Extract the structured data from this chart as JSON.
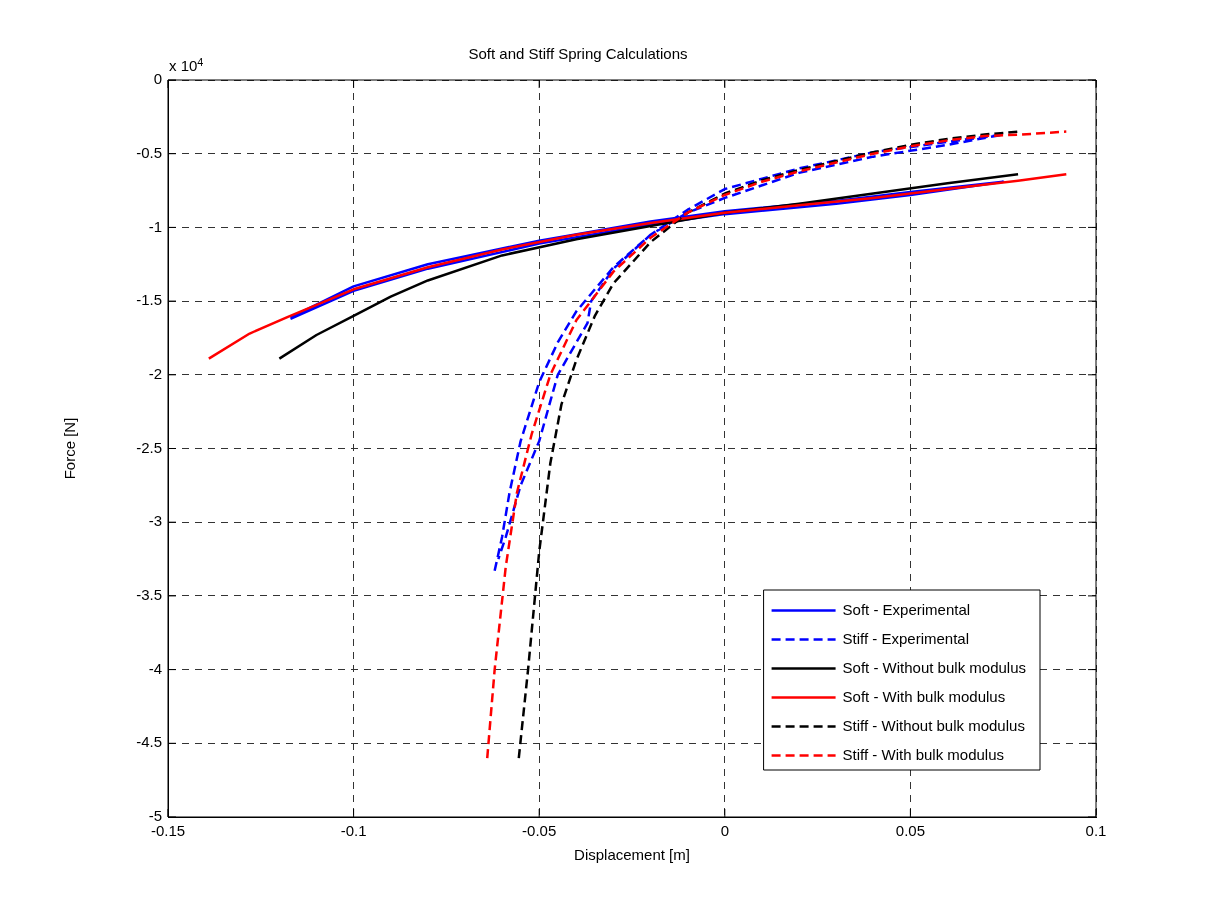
{
  "chart_data": {
    "type": "line",
    "title": "Soft and Stiff Spring Calculations",
    "xlabel": "Displacement [m]",
    "ylabel": "Force [N]",
    "annotations": [
      "x 10$^{4}$"
    ],
    "xlim": [
      -0.15,
      0.1
    ],
    "xticks": [
      -0.15,
      -0.1,
      -0.05,
      0,
      0.05,
      0.1
    ],
    "ylim": [
      -5,
      0
    ],
    "yticks": [
      -5,
      -4.5,
      -4,
      -3.5,
      -3,
      -2.5,
      -2,
      -1.5,
      -1,
      -0.5,
      0
    ],
    "grid": true,
    "legend": "bottom right",
    "marker": "none",
    "series": [
      {
        "name": "Soft - Experimental",
        "color": "#0000ff",
        "line_style": "solid",
        "x": [
          -0.117,
          -0.1,
          -0.08,
          -0.05,
          -0.02,
          0,
          0.03,
          0.05,
          0.075,
          0.05,
          0.03,
          0,
          -0.02,
          -0.05,
          -0.08,
          -0.1,
          -0.117
        ],
        "values": [
          -1.61,
          -1.4,
          -1.25,
          -1.09,
          -0.96,
          -0.89,
          -0.82,
          -0.76,
          -0.69,
          -0.78,
          -0.84,
          -0.91,
          -0.98,
          -1.11,
          -1.28,
          -1.43,
          -1.62
        ]
      },
      {
        "name": "Stiff - Experimental",
        "color": "#0000ff",
        "line_style": "dashed",
        "x": [
          -0.062,
          -0.06,
          -0.058,
          -0.055,
          -0.05,
          -0.045,
          -0.04,
          -0.03,
          -0.02,
          -0.01,
          0,
          0.02,
          0.04,
          0.06,
          0.075,
          0.06,
          0.04,
          0.02,
          0,
          -0.01,
          -0.02,
          -0.03,
          -0.036,
          -0.037,
          -0.045,
          -0.05,
          -0.055,
          -0.059,
          -0.061
        ],
        "values": [
          -3.33,
          -3.1,
          -2.8,
          -2.45,
          -2.05,
          -1.78,
          -1.57,
          -1.27,
          -1.05,
          -0.88,
          -0.74,
          -0.6,
          -0.49,
          -0.42,
          -0.37,
          -0.44,
          -0.52,
          -0.63,
          -0.8,
          -0.9,
          -1.05,
          -1.28,
          -1.5,
          -1.65,
          -2.0,
          -2.45,
          -2.75,
          -3.1,
          -3.25
        ]
      },
      {
        "name": "Soft - Without bulk modulus",
        "color": "#000000",
        "line_style": "solid",
        "x": [
          -0.12,
          -0.11,
          -0.1,
          -0.09,
          -0.08,
          -0.06,
          -0.04,
          -0.02,
          0,
          0.02,
          0.04,
          0.06,
          0.079
        ],
        "values": [
          -1.89,
          -1.73,
          -1.6,
          -1.47,
          -1.36,
          -1.19,
          -1.08,
          -0.99,
          -0.9,
          -0.84,
          -0.77,
          -0.7,
          -0.64
        ]
      },
      {
        "name": "Soft - With bulk modulus",
        "color": "#ff0000",
        "line_style": "solid",
        "x": [
          -0.139,
          -0.128,
          -0.118,
          -0.1,
          -0.08,
          -0.06,
          -0.04,
          -0.02,
          0,
          0.02,
          0.04,
          0.06,
          0.08,
          0.092
        ],
        "values": [
          -1.89,
          -1.72,
          -1.61,
          -1.42,
          -1.27,
          -1.15,
          -1.05,
          -0.97,
          -0.9,
          -0.85,
          -0.8,
          -0.74,
          -0.68,
          -0.64
        ]
      },
      {
        "name": "Stiff - Without bulk modulus",
        "color": "#000000",
        "line_style": "dashed",
        "x": [
          -0.0555,
          -0.053,
          -0.05,
          -0.047,
          -0.044,
          -0.04,
          -0.035,
          -0.03,
          -0.02,
          -0.01,
          0,
          0.01,
          0.02,
          0.03,
          0.04,
          0.05,
          0.06,
          0.07,
          0.079
        ],
        "values": [
          -4.6,
          -4.0,
          -3.2,
          -2.6,
          -2.2,
          -1.9,
          -1.6,
          -1.38,
          -1.1,
          -0.9,
          -0.77,
          -0.68,
          -0.61,
          -0.55,
          -0.49,
          -0.44,
          -0.4,
          -0.37,
          -0.35
        ]
      },
      {
        "name": "Stiff - With bulk modulus",
        "color": "#ff0000",
        "line_style": "dashed",
        "x": [
          -0.064,
          -0.062,
          -0.059,
          -0.056,
          -0.052,
          -0.047,
          -0.04,
          -0.03,
          -0.02,
          -0.01,
          0,
          0.01,
          0.02,
          0.03,
          0.04,
          0.05,
          0.06,
          0.07,
          0.08,
          0.092
        ],
        "values": [
          -4.6,
          -4.0,
          -3.3,
          -2.8,
          -2.4,
          -2.0,
          -1.63,
          -1.3,
          -1.07,
          -0.9,
          -0.78,
          -0.69,
          -0.62,
          -0.56,
          -0.5,
          -0.45,
          -0.41,
          -0.38,
          -0.37,
          -0.35
        ]
      }
    ]
  }
}
